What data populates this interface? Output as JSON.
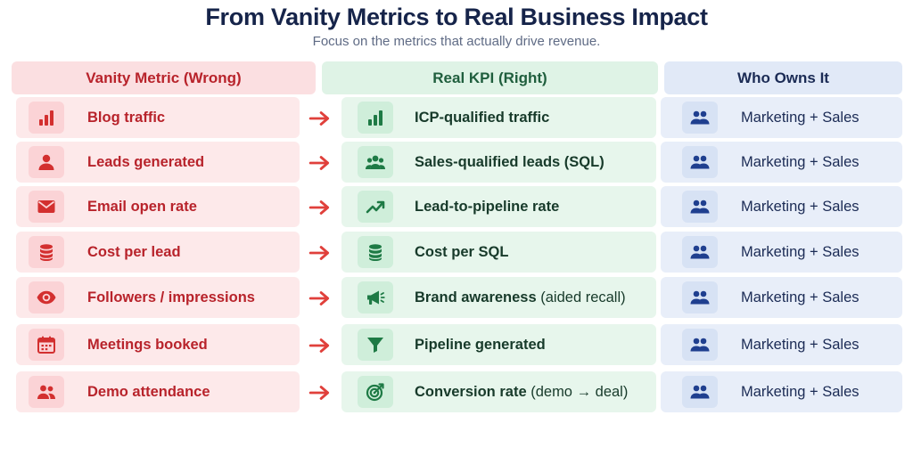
{
  "title": "From Vanity Metrics to Real Business Impact",
  "subtitle": "Focus on the metrics that actually drive revenue.",
  "headers": {
    "vanity": "Vanity Metric (Wrong)",
    "kpi": "Real KPI (Right)",
    "owner": "Who Owns It"
  },
  "colors": {
    "vanity_accent": "#d32f2f",
    "kpi_accent": "#1e7a45",
    "owner_accent": "#1f3f8f"
  },
  "rows": [
    {
      "vanity": "Blog traffic",
      "vanity_icon": "bar-chart-icon",
      "kpi": "ICP-qualified traffic",
      "kpi_note": "",
      "kpi_icon": "bar-chart-icon",
      "owner": "Marketing + Sales",
      "owner_icon": "team-icon"
    },
    {
      "vanity": "Leads generated",
      "vanity_icon": "person-icon",
      "kpi": "Sales-qualified leads (SQL)",
      "kpi_note": "",
      "kpi_icon": "group-icon",
      "owner": "Marketing + Sales",
      "owner_icon": "team-icon"
    },
    {
      "vanity": "Email open rate",
      "vanity_icon": "envelope-icon",
      "kpi": "Lead-to-pipeline rate",
      "kpi_note": "",
      "kpi_icon": "trend-up-icon",
      "owner": "Marketing + Sales",
      "owner_icon": "team-icon"
    },
    {
      "vanity": "Cost per lead",
      "vanity_icon": "coins-icon",
      "kpi": "Cost per SQL",
      "kpi_note": "",
      "kpi_icon": "coins-icon",
      "owner": "Marketing + Sales",
      "owner_icon": "team-icon"
    },
    {
      "vanity": "Followers / impressions",
      "vanity_icon": "eye-icon",
      "kpi": "Brand awareness",
      "kpi_note": "(aided recall)",
      "kpi_icon": "megaphone-icon",
      "owner": "Marketing + Sales",
      "owner_icon": "team-icon"
    },
    {
      "vanity": "Meetings booked",
      "vanity_icon": "calendar-icon",
      "kpi": "Pipeline generated",
      "kpi_note": "",
      "kpi_icon": "funnel-icon",
      "owner": "Marketing + Sales",
      "owner_icon": "team-icon"
    },
    {
      "vanity": "Demo attendance",
      "vanity_icon": "attendees-icon",
      "kpi": "Conversion rate",
      "kpi_note": "(demo → deal)",
      "kpi_icon": "target-icon",
      "owner": "Marketing + Sales",
      "owner_icon": "team-icon"
    }
  ]
}
